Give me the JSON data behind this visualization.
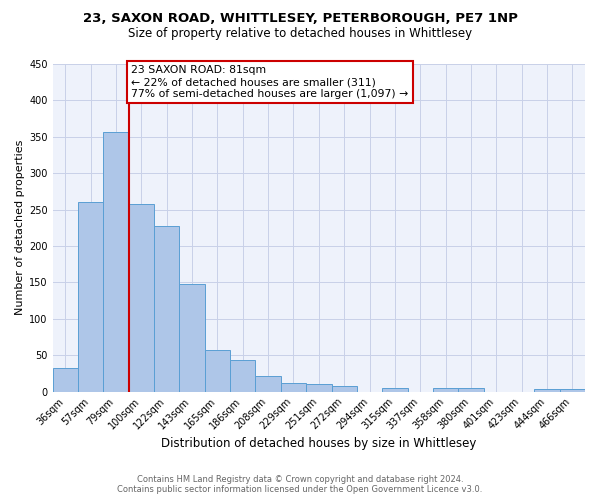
{
  "title": "23, SAXON ROAD, WHITTLESEY, PETERBOROUGH, PE7 1NP",
  "subtitle": "Size of property relative to detached houses in Whittlesey",
  "xlabel": "Distribution of detached houses by size in Whittlesey",
  "ylabel": "Number of detached properties",
  "bar_labels": [
    "36sqm",
    "57sqm",
    "79sqm",
    "100sqm",
    "122sqm",
    "143sqm",
    "165sqm",
    "186sqm",
    "208sqm",
    "229sqm",
    "251sqm",
    "272sqm",
    "294sqm",
    "315sqm",
    "337sqm",
    "358sqm",
    "380sqm",
    "401sqm",
    "423sqm",
    "444sqm",
    "466sqm"
  ],
  "bar_values": [
    33,
    261,
    356,
    257,
    228,
    148,
    57,
    44,
    21,
    12,
    11,
    7,
    0,
    5,
    0,
    5,
    5,
    0,
    0,
    4,
    4
  ],
  "bar_color": "#aec6e8",
  "bar_edge_color": "#5a9fd4",
  "vline_color": "#cc0000",
  "annotation_line1": "23 SAXON ROAD: 81sqm",
  "annotation_line2": "← 22% of detached houses are smaller (311)",
  "annotation_line3": "77% of semi-detached houses are larger (1,097) →",
  "annotation_box_color": "#cc0000",
  "ylim": [
    0,
    450
  ],
  "yticks": [
    0,
    50,
    100,
    150,
    200,
    250,
    300,
    350,
    400,
    450
  ],
  "background_color": "#eef2fb",
  "grid_color": "#c8d0e8",
  "footer_line1": "Contains HM Land Registry data © Crown copyright and database right 2024.",
  "footer_line2": "Contains public sector information licensed under the Open Government Licence v3.0.",
  "title_fontsize": 9.5,
  "subtitle_fontsize": 8.5,
  "xlabel_fontsize": 8.5,
  "ylabel_fontsize": 8.0,
  "tick_fontsize": 7.0,
  "annotation_fontsize": 7.8,
  "footer_fontsize": 6.0
}
